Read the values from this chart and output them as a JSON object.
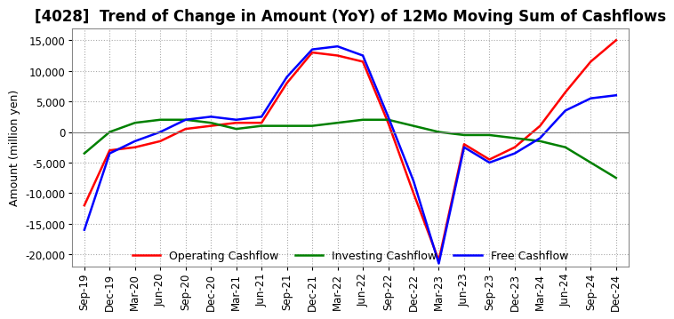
{
  "title": "[4028]  Trend of Change in Amount (YoY) of 12Mo Moving Sum of Cashflows",
  "ylabel": "Amount (million yen)",
  "x_labels": [
    "Sep-19",
    "Dec-19",
    "Mar-20",
    "Jun-20",
    "Sep-20",
    "Dec-20",
    "Mar-21",
    "Jun-21",
    "Sep-21",
    "Dec-21",
    "Mar-22",
    "Jun-22",
    "Sep-22",
    "Dec-22",
    "Mar-23",
    "Jun-23",
    "Sep-23",
    "Dec-23",
    "Mar-24",
    "Jun-24",
    "Sep-24",
    "Dec-24"
  ],
  "operating": [
    -12000,
    -3000,
    -2500,
    -1500,
    500,
    1000,
    1500,
    1500,
    8000,
    13000,
    12500,
    11500,
    1500,
    -10000,
    -21000,
    -2000,
    -4500,
    -2500,
    1000,
    6500,
    11500,
    15000
  ],
  "investing": [
    -3500,
    0,
    1500,
    2000,
    2000,
    1500,
    500,
    1000,
    1000,
    1000,
    1500,
    2000,
    2000,
    1000,
    0,
    -500,
    -500,
    -1000,
    -1500,
    -2500,
    -5000,
    -7500
  ],
  "free": [
    -16000,
    -3500,
    -1500,
    0,
    2000,
    2500,
    2000,
    2500,
    9000,
    13500,
    14000,
    12500,
    2500,
    -8000,
    -21500,
    -2500,
    -5000,
    -3500,
    -1000,
    3500,
    5500,
    6000
  ],
  "ylim": [
    -22000,
    17000
  ],
  "yticks": [
    -20000,
    -15000,
    -10000,
    -5000,
    0,
    5000,
    10000,
    15000
  ],
  "colors": {
    "operating": "#ff0000",
    "investing": "#008000",
    "free": "#0000ff"
  },
  "background_color": "#ffffff",
  "grid_color": "#aaaaaa",
  "title_fontsize": 12,
  "label_fontsize": 9,
  "tick_fontsize": 8.5
}
